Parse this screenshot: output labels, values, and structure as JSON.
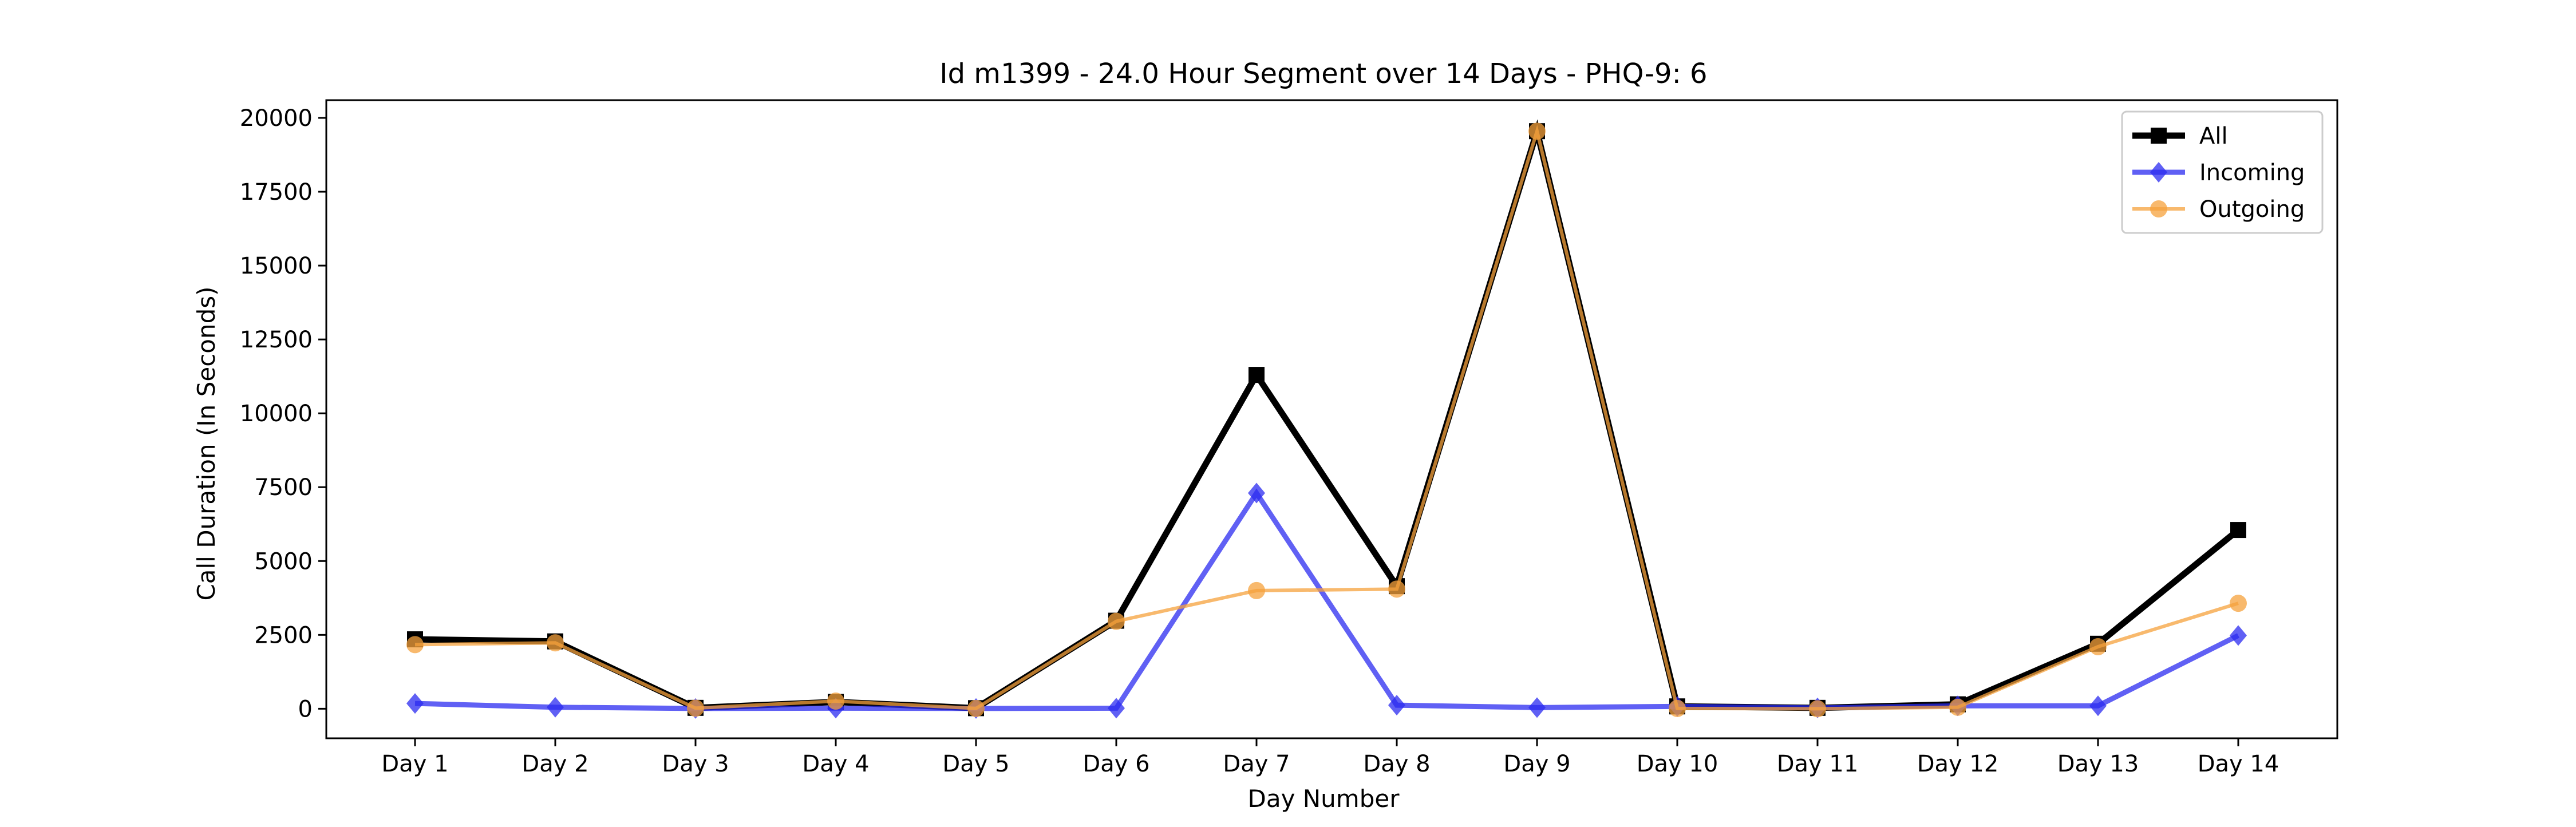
{
  "chart_data": {
    "type": "line",
    "title": "Id m1399 - 24.0 Hour Segment over 14 Days - PHQ-9: 6",
    "xlabel": "Day Number",
    "ylabel": "Call Duration (In Seconds)",
    "categories": [
      "Day 1",
      "Day 2",
      "Day 3",
      "Day 4",
      "Day 5",
      "Day 6",
      "Day 7",
      "Day 8",
      "Day 9",
      "Day 10",
      "Day 11",
      "Day 12",
      "Day 13",
      "Day 14"
    ],
    "ylim": [
      -1000,
      20600
    ],
    "yticks": [
      0,
      2500,
      5000,
      7500,
      10000,
      12500,
      15000,
      17500,
      20000
    ],
    "ytick_labels": [
      "0",
      "2500",
      "5000",
      "7500",
      "10000",
      "12500",
      "15000",
      "17500",
      "20000"
    ],
    "grid": false,
    "legend_position": "top-right",
    "series": [
      {
        "name": "All",
        "color": "#000000",
        "marker": "square",
        "values": [
          2350,
          2280,
          30,
          230,
          20,
          2980,
          11300,
          4150,
          19550,
          80,
          30,
          150,
          2200,
          6050
        ]
      },
      {
        "name": "Incoming",
        "color": "#2b2bf0",
        "marker": "diamond",
        "values": [
          180,
          50,
          10,
          20,
          10,
          20,
          7300,
          120,
          40,
          80,
          30,
          100,
          100,
          2480
        ]
      },
      {
        "name": "Outgoing",
        "color": "#f5a23c",
        "marker": "circle",
        "values": [
          2170,
          2230,
          20,
          260,
          10,
          2960,
          4000,
          4050,
          19550,
          10,
          0,
          50,
          2100,
          3570
        ]
      }
    ]
  }
}
